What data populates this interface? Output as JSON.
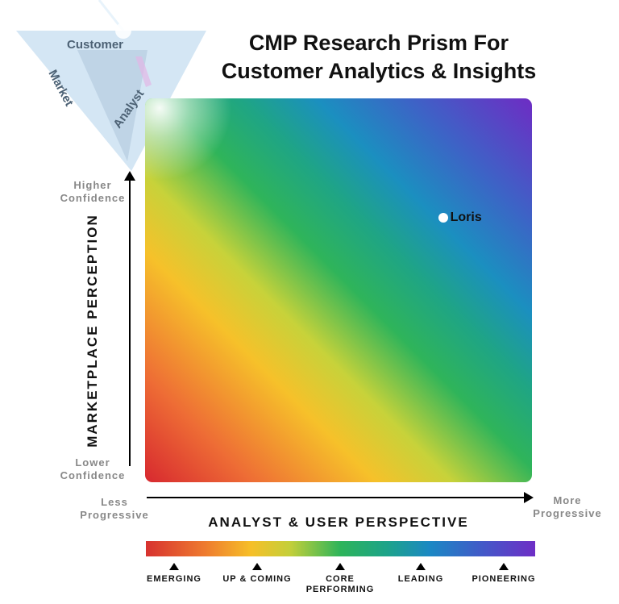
{
  "logo": {
    "faces": [
      "Customer",
      "Market",
      "Analyst"
    ]
  },
  "title_lines": [
    "CMP Research Prism For",
    "Customer Analytics & Insights"
  ],
  "chart_data": {
    "type": "scatter",
    "title": "CMP Research Prism For Customer Analytics & Insights",
    "xlabel": "ANALYST & USER PERSPECTIVE",
    "ylabel": "MARKETPLACE PERCEPTION",
    "x_ends": [
      "Less Progressive",
      "More Progressive"
    ],
    "y_ends": [
      "Lower Confidence",
      "Higher Confidence"
    ],
    "xlim": [
      0,
      1
    ],
    "ylim": [
      0,
      1
    ],
    "grid": false,
    "points": [
      {
        "label": "Loris",
        "x": 0.77,
        "y": 0.69
      }
    ],
    "scale_labels": [
      "EMERGING",
      "UP & COMING",
      "CORE PERFORMING",
      "LEADING",
      "PIONEERING"
    ],
    "gradient_colors": [
      "#d7282f",
      "#f6c12a",
      "#2fb45a",
      "#1b8fc0",
      "#6e2cc4"
    ]
  }
}
